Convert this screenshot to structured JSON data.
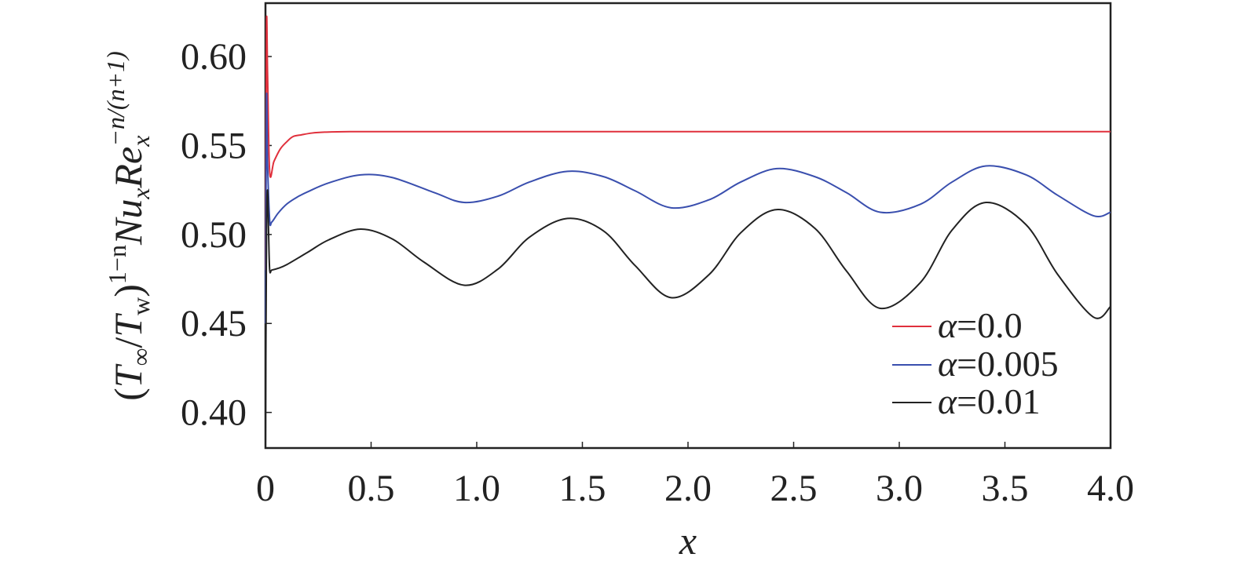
{
  "chart_data": {
    "type": "line",
    "xlabel": "x",
    "ylabel": {
      "open": "(",
      "T1": "T",
      "T1_sub": "∞",
      "slash": "/",
      "T2": "T",
      "T2_sub": "w",
      "close": ")",
      "exp1": "1−n",
      "Nu": "Nu",
      "Nu_sub": "x",
      "Re": "Re",
      "Re_sub": "x",
      "exp2": "−n/(n+1)"
    },
    "xlim": [
      0,
      4.0
    ],
    "ylim": [
      0.38,
      0.63
    ],
    "x_ticks": [
      0,
      0.5,
      1.0,
      1.5,
      2.0,
      2.5,
      3.0,
      3.5,
      4.0
    ],
    "x_tick_labels": [
      "0",
      "0.5",
      "1.0",
      "1.5",
      "2.0",
      "2.5",
      "3.0",
      "3.5",
      "4.0"
    ],
    "y_ticks": [
      0.4,
      0.45,
      0.5,
      0.55,
      0.6
    ],
    "y_tick_labels": [
      "0.40",
      "0.45",
      "0.50",
      "0.55",
      "0.60"
    ],
    "grid": false,
    "legend_position": "bottom-right",
    "series": [
      {
        "name": "α=0.0",
        "legend_symbol": "α",
        "legend_value": "=0.0",
        "color": "#e0303c",
        "x": [
          0.0,
          0.005,
          0.01,
          0.02,
          0.04,
          0.07,
          0.1,
          0.13,
          0.17,
          0.22,
          0.28,
          0.4,
          0.7,
          1.0,
          1.5,
          2.0,
          2.5,
          3.0,
          3.5,
          4.0
        ],
        "values": [
          0.48,
          0.617,
          0.59,
          0.535,
          0.541,
          0.548,
          0.552,
          0.555,
          0.556,
          0.557,
          0.5575,
          0.5578,
          0.5578,
          0.5578,
          0.5578,
          0.5578,
          0.5578,
          0.5578,
          0.5578,
          0.5578
        ]
      },
      {
        "name": "α=0.005",
        "legend_symbol": "α",
        "legend_value": "=0.005",
        "color": "#3a4fae",
        "x": [
          0.0,
          0.005,
          0.01,
          0.02,
          0.03,
          0.06,
          0.1,
          0.15,
          0.2,
          0.3,
          0.45,
          0.6,
          0.8,
          0.94,
          1.1,
          1.25,
          1.43,
          1.6,
          1.75,
          1.92,
          2.1,
          2.25,
          2.42,
          2.6,
          2.75,
          2.91,
          3.1,
          3.25,
          3.41,
          3.6,
          3.75,
          3.92,
          4.0
        ],
        "values": [
          0.45,
          0.576,
          0.54,
          0.508,
          0.507,
          0.512,
          0.517,
          0.521,
          0.524,
          0.529,
          0.5335,
          0.532,
          0.5235,
          0.518,
          0.5215,
          0.5295,
          0.5355,
          0.5325,
          0.5245,
          0.515,
          0.5195,
          0.5295,
          0.537,
          0.5325,
          0.5235,
          0.5125,
          0.517,
          0.5295,
          0.5385,
          0.5335,
          0.522,
          0.5105,
          0.5125
        ]
      },
      {
        "name": "α=0.01",
        "legend_symbol": "α",
        "legend_value": "=0.01",
        "color": "#222222",
        "x": [
          0.0,
          0.005,
          0.01,
          0.015,
          0.02,
          0.03,
          0.06,
          0.1,
          0.2,
          0.3,
          0.45,
          0.6,
          0.75,
          0.94,
          1.1,
          1.25,
          1.43,
          1.6,
          1.75,
          1.92,
          2.1,
          2.25,
          2.42,
          2.6,
          2.75,
          2.91,
          3.1,
          3.25,
          3.41,
          3.6,
          3.75,
          3.92,
          4.0
        ],
        "values": [
          0.375,
          0.5,
          0.525,
          0.5,
          0.48,
          0.48,
          0.481,
          0.483,
          0.49,
          0.497,
          0.503,
          0.4975,
          0.4845,
          0.4715,
          0.4805,
          0.4985,
          0.509,
          0.502,
          0.4825,
          0.4645,
          0.4775,
          0.501,
          0.514,
          0.5035,
          0.4795,
          0.4585,
          0.473,
          0.5025,
          0.518,
          0.5055,
          0.4775,
          0.4535,
          0.4595
        ]
      }
    ]
  }
}
